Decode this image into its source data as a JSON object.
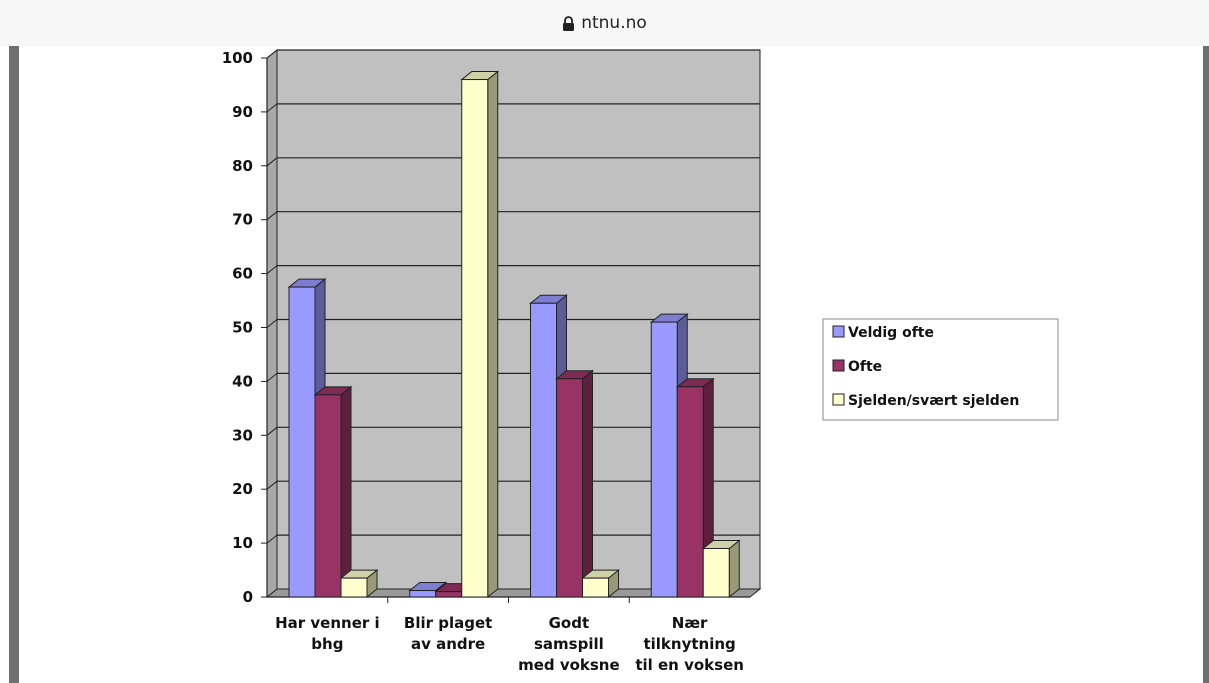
{
  "browser": {
    "url": "ntnu.no",
    "lock_icon": "lock-icon"
  },
  "chart_data": {
    "type": "bar",
    "categories": [
      [
        "Har venner i",
        "bhg"
      ],
      [
        "Blir plaget",
        "av andre"
      ],
      [
        "Godt",
        "samspill",
        "med voksne"
      ],
      [
        "Nær",
        "tilknytning",
        "til en voksen"
      ]
    ],
    "series": [
      {
        "name": "Veldig ofte",
        "color": "#9999ff",
        "values": [
          57.5,
          1.2,
          54.5,
          51
        ]
      },
      {
        "name": "Ofte",
        "color": "#993366",
        "values": [
          37.5,
          1,
          40.5,
          39
        ]
      },
      {
        "name": "Sjelden/svært sjelden",
        "color": "#ffffcc",
        "values": [
          3.5,
          96,
          3.5,
          9
        ]
      }
    ],
    "ylim": [
      0,
      100
    ],
    "yticks": [
      "0",
      "10",
      "20",
      "30",
      "40",
      "50",
      "60",
      "70",
      "80",
      "90",
      "100"
    ],
    "plot_background": "#c0c0c0",
    "grid": true,
    "style": "3d-clustered-bar",
    "legend_position": "right"
  }
}
